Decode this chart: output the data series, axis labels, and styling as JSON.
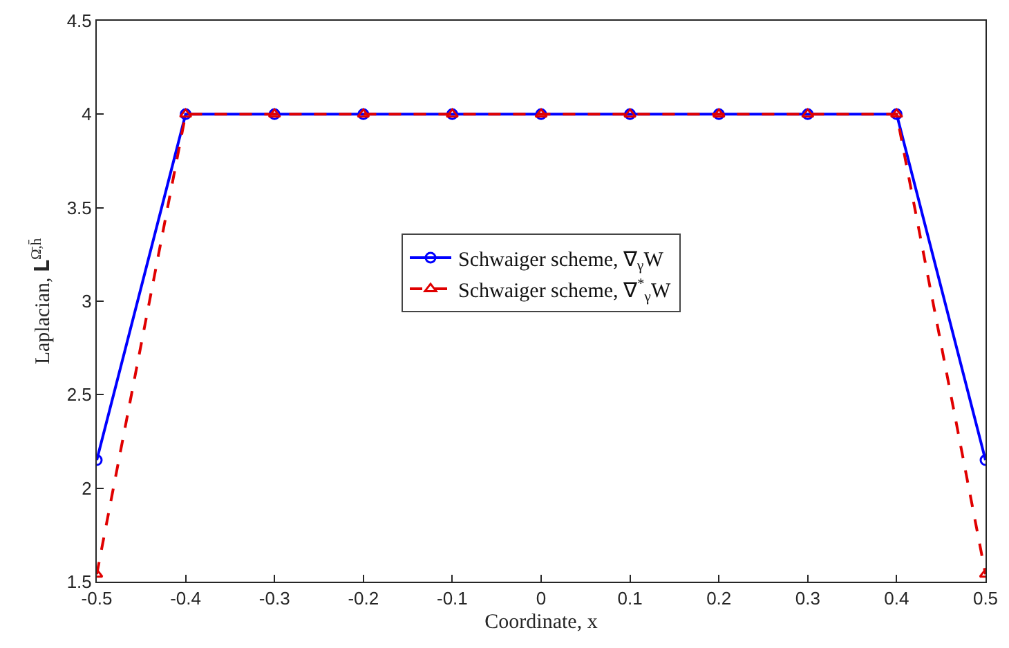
{
  "chart_data": {
    "type": "line",
    "xlabel": "Coordinate, x",
    "ylabel": "Laplacian, 𝐋$^{Ω̄,h̄}$",
    "x": [
      -0.5,
      -0.4,
      -0.3,
      -0.2,
      -0.1,
      0,
      0.1,
      0.2,
      0.3,
      0.4,
      0.5
    ],
    "series": [
      {
        "name": "Schwaiger scheme, ∇$_{γ}$W",
        "color": "#0000ff",
        "marker": "circle",
        "line_style": "solid",
        "values": [
          2.15,
          4,
          4,
          4,
          4,
          4,
          4,
          4,
          4,
          4,
          2.15
        ]
      },
      {
        "name": "Schwaiger scheme, ∇$^{*}$$_{γ}$W",
        "color": "#e00000",
        "marker": "triangle",
        "line_style": "dashed",
        "values": [
          1.54,
          4,
          4,
          4,
          4,
          4,
          4,
          4,
          4,
          4,
          1.54
        ]
      }
    ],
    "xlim": [
      -0.5,
      0.5
    ],
    "xticks": [
      -0.5,
      -0.4,
      -0.3,
      -0.2,
      -0.1,
      0,
      0.1,
      0.2,
      0.3,
      0.4,
      0.5
    ],
    "ylim": [
      1.5,
      4.5
    ],
    "yticks": [
      1.5,
      2,
      2.5,
      3,
      3.5,
      4,
      4.5
    ],
    "legend": "center"
  }
}
